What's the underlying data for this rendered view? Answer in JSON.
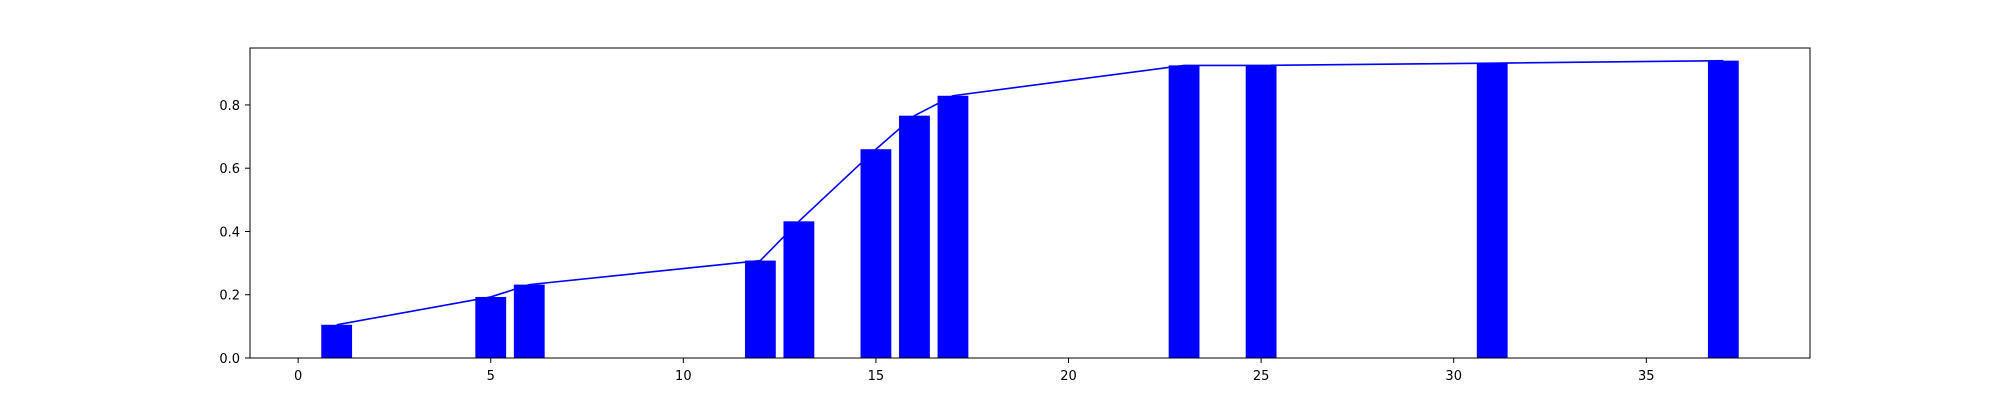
{
  "chart_data": {
    "type": "bar",
    "title": "",
    "xlabel": "",
    "ylabel": "",
    "xlim": [
      -1.25,
      39.25
    ],
    "ylim": [
      0,
      0.98
    ],
    "grid": false,
    "bar_width": 0.8,
    "x_ticks": [
      0,
      5,
      10,
      15,
      20,
      25,
      30,
      35
    ],
    "x_tick_labels": [
      "0",
      "5",
      "10",
      "15",
      "20",
      "25",
      "30",
      "35"
    ],
    "y_ticks": [
      0.0,
      0.2,
      0.4,
      0.6,
      0.8
    ],
    "y_tick_labels": [
      "0.0",
      "0.2",
      "0.4",
      "0.6",
      "0.8"
    ],
    "colors": {
      "bars": "#0000ff",
      "line": "#0000ff",
      "axes": "#000000"
    },
    "series": [
      {
        "type": "bar",
        "x": [
          1,
          5,
          6,
          12,
          13,
          15,
          16,
          17,
          23,
          25,
          31,
          37
        ],
        "values": [
          0.105,
          0.193,
          0.232,
          0.308,
          0.432,
          0.66,
          0.766,
          0.829,
          0.925,
          0.925,
          0.932,
          0.94
        ]
      },
      {
        "type": "line",
        "x": [
          1,
          5,
          6,
          12,
          13,
          15,
          16,
          17,
          23,
          25,
          31,
          37
        ],
        "values": [
          0.105,
          0.193,
          0.232,
          0.308,
          0.432,
          0.66,
          0.766,
          0.829,
          0.925,
          0.925,
          0.932,
          0.94
        ]
      }
    ]
  }
}
